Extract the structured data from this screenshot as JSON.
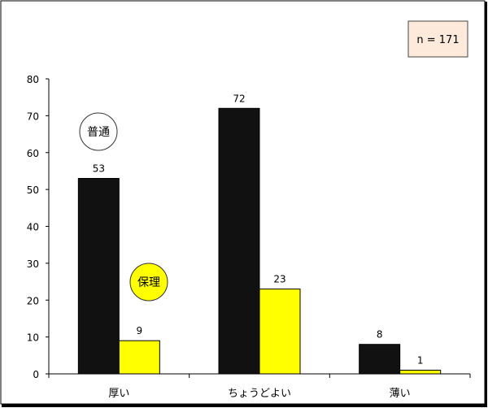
{
  "chart_data": {
    "type": "bar",
    "categories": [
      "厚い",
      "ちょうどよい",
      "薄い"
    ],
    "series": [
      {
        "name": "普通",
        "values": [
          53,
          72,
          8
        ],
        "color": "#111111"
      },
      {
        "name": "保理",
        "values": [
          9,
          23,
          1
        ],
        "color": "#ffff00"
      }
    ],
    "ylim": [
      0,
      80
    ],
    "yticks": [
      0,
      10,
      20,
      30,
      40,
      50,
      60,
      70,
      80
    ],
    "grid": false,
    "annotation": "n = 171",
    "annotation_bg": "#fdeadb",
    "legend": "inline circles near first category"
  }
}
